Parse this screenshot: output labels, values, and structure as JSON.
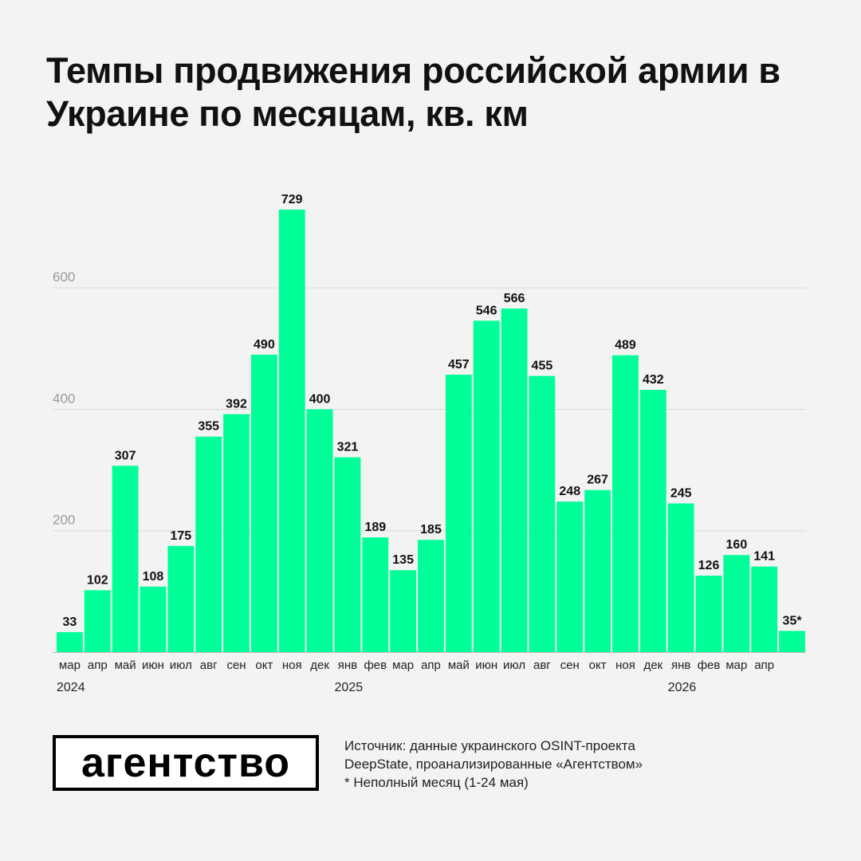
{
  "title": "Темпы продвижения российской армии в Украине по месяцам, кв. км",
  "logo_text": "агентство",
  "source_lines": [
    "Источник: данные украинского OSINT-проекта",
    "DeepState, проанализированные «Агентством»",
    "* Неполный месяц (1-24 мая)"
  ],
  "colors": {
    "bar": "#00ff99",
    "grid": "#d9d9d9",
    "background": "#f3f3f3"
  },
  "chart_data": {
    "type": "bar",
    "categories": [
      "мар",
      "апр",
      "май",
      "июн",
      "июл",
      "авг",
      "сен",
      "окт",
      "ноя",
      "дек",
      "янв",
      "фев",
      "мар",
      "апр",
      "май",
      "июн",
      "июл",
      "авг",
      "сен",
      "окт",
      "ноя",
      "дек",
      "янв",
      "фев",
      "мар",
      "апр",
      "май"
    ],
    "category_labels": [
      "мар",
      "апр",
      "май",
      "июн",
      "июл",
      "авг",
      "сен",
      "окт",
      "ноя",
      "дек",
      "янв",
      "фев",
      "мар",
      "апр",
      "май",
      "июн",
      "июл",
      "авг",
      "сен",
      "окт",
      "ноя",
      "дек",
      "янв",
      "фев",
      "мар",
      "апр",
      ""
    ],
    "values": [
      33,
      102,
      307,
      108,
      175,
      355,
      392,
      490,
      729,
      400,
      321,
      189,
      135,
      185,
      457,
      546,
      566,
      455,
      248,
      267,
      489,
      432,
      245,
      126,
      160,
      141,
      35
    ],
    "value_labels": [
      "33",
      "102",
      "307",
      "108",
      "175",
      "355",
      "392",
      "490",
      "729",
      "400",
      "321",
      "189",
      "135",
      "185",
      "457",
      "546",
      "566",
      "455",
      "248",
      "267",
      "489",
      "432",
      "245",
      "126",
      "160",
      "141",
      "35*"
    ],
    "years": [
      {
        "label": "2024",
        "index": 0
      },
      {
        "label": "2025",
        "index": 10
      },
      {
        "label": "2026",
        "index": 22
      }
    ],
    "yticks": [
      200,
      400,
      600
    ],
    "ylim": [
      0,
      750
    ],
    "grid": true,
    "legend": "none"
  }
}
